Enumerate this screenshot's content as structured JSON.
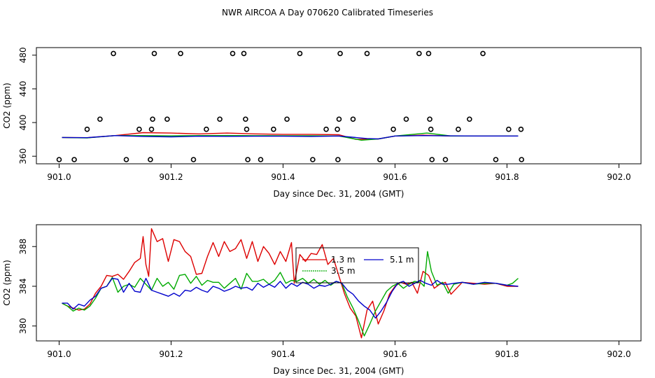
{
  "title": "NWR AIRCOA A  Day 070620  Calibrated Timeseries",
  "colors": {
    "background": "#ffffff",
    "axis": "#000000",
    "series_1_3m": "#dd0000",
    "series_3_5m": "#00aa00",
    "series_5_1m": "#0000cc",
    "calibration_points": "#000000"
  },
  "chart_data": [
    {
      "type": "line",
      "name": "top-panel",
      "xlabel": "Day since Dec. 31, 2004 (GMT)",
      "ylabel": "CO2 (ppm)",
      "xlim": [
        901.0,
        902.0
      ],
      "ylim": [
        356,
        484
      ],
      "x_ticks": [
        901.0,
        901.2,
        901.4,
        901.6,
        901.8,
        902.0
      ],
      "x_tick_labels": [
        "901.0",
        "901.2",
        "901.4",
        "901.6",
        "901.8",
        "902.0"
      ],
      "y_ticks": [
        360,
        400,
        440,
        480
      ],
      "y_tick_labels": [
        "360",
        "400",
        "440",
        "480"
      ],
      "calibration_points": {
        "name": "calibration standards",
        "points": [
          [
            901.0,
            356
          ],
          [
            901.027,
            356
          ],
          [
            901.05,
            392
          ],
          [
            901.073,
            404
          ],
          [
            901.097,
            482
          ],
          [
            901.12,
            356
          ],
          [
            901.143,
            392
          ],
          [
            901.163,
            356
          ],
          [
            901.165,
            392
          ],
          [
            901.167,
            404
          ],
          [
            901.17,
            482
          ],
          [
            901.193,
            404
          ],
          [
            901.217,
            482
          ],
          [
            901.24,
            356
          ],
          [
            901.263,
            392
          ],
          [
            901.287,
            404
          ],
          [
            901.31,
            482
          ],
          [
            901.33,
            482
          ],
          [
            901.333,
            404
          ],
          [
            901.335,
            392
          ],
          [
            901.337,
            356
          ],
          [
            901.36,
            356
          ],
          [
            901.383,
            392
          ],
          [
            901.407,
            404
          ],
          [
            901.43,
            482
          ],
          [
            901.453,
            356
          ],
          [
            901.477,
            392
          ],
          [
            901.497,
            392
          ],
          [
            901.498,
            356
          ],
          [
            901.5,
            404
          ],
          [
            901.502,
            482
          ],
          [
            901.525,
            404
          ],
          [
            901.55,
            482
          ],
          [
            901.573,
            356
          ],
          [
            901.597,
            392
          ],
          [
            901.62,
            404
          ],
          [
            901.643,
            482
          ],
          [
            901.66,
            482
          ],
          [
            901.662,
            404
          ],
          [
            901.664,
            392
          ],
          [
            901.666,
            356
          ],
          [
            901.69,
            356
          ],
          [
            901.713,
            392
          ],
          [
            901.733,
            404
          ],
          [
            901.757,
            482
          ],
          [
            901.78,
            356
          ],
          [
            901.803,
            392
          ],
          [
            901.825,
            392
          ],
          [
            901.826,
            356
          ]
        ]
      },
      "series": [
        {
          "name": "1.3 m",
          "color": "#dd0000",
          "x": [
            901.005,
            901.05,
            901.1,
            901.15,
            901.2,
            901.25,
            901.3,
            901.35,
            901.4,
            901.45,
            901.5,
            901.53,
            901.57,
            901.6,
            901.65,
            901.7,
            901.75,
            901.8,
            901.82
          ],
          "y": [
            382.3,
            382.0,
            384.5,
            388.0,
            387.5,
            386.5,
            387.5,
            386.5,
            386.0,
            386.0,
            385.5,
            380.0,
            380.5,
            384.0,
            385.0,
            384.0,
            384.0,
            384.0,
            384.0
          ]
        },
        {
          "name": "3.5 m",
          "color": "#00aa00",
          "x": [
            901.005,
            901.05,
            901.1,
            901.15,
            901.2,
            901.25,
            901.3,
            901.35,
            901.4,
            901.45,
            901.5,
            901.54,
            901.57,
            901.6,
            901.657,
            901.7,
            901.75,
            901.8,
            901.82
          ],
          "y": [
            382.3,
            381.8,
            384.5,
            384.5,
            384.2,
            384.5,
            384.6,
            384.4,
            384.3,
            384.3,
            384.0,
            379.0,
            380.5,
            384.0,
            387.5,
            384.0,
            384.0,
            384.0,
            384.0
          ]
        },
        {
          "name": "5.1 m",
          "color": "#0000cc",
          "x": [
            901.005,
            901.05,
            901.1,
            901.15,
            901.2,
            901.25,
            901.3,
            901.35,
            901.4,
            901.45,
            901.5,
            901.55,
            901.57,
            901.6,
            901.65,
            901.7,
            901.75,
            901.8,
            901.82
          ],
          "y": [
            382.3,
            382.0,
            384.5,
            383.5,
            383.0,
            383.8,
            383.6,
            383.8,
            383.8,
            383.5,
            384.0,
            381.0,
            380.6,
            384.0,
            384.5,
            384.2,
            384.0,
            384.0,
            384.0
          ]
        }
      ]
    },
    {
      "type": "line",
      "name": "bottom-panel",
      "xlabel": "Day since Dec. 31, 2004 (GMT)",
      "ylabel": "CO2 (ppm)",
      "xlim": [
        901.0,
        902.0
      ],
      "ylim": [
        378.5,
        390.2
      ],
      "x_ticks": [
        901.0,
        901.2,
        901.4,
        901.6,
        901.8,
        902.0
      ],
      "x_tick_labels": [
        "901.0",
        "901.2",
        "901.4",
        "901.6",
        "901.8",
        "902.0"
      ],
      "y_ticks": [
        380,
        384,
        388
      ],
      "y_tick_labels": [
        "380",
        "384",
        "388"
      ],
      "legend": {
        "position": "center-right",
        "entries": [
          "1.3 m",
          "3.5 m",
          "5.1 m"
        ]
      },
      "series": [
        {
          "name": "1.3 m",
          "color": "#dd0000",
          "x": [
            901.005,
            901.015,
            901.025,
            901.035,
            901.045,
            901.055,
            901.065,
            901.075,
            901.085,
            901.095,
            901.105,
            901.115,
            901.125,
            901.135,
            901.145,
            901.15,
            901.155,
            901.16,
            901.165,
            901.175,
            901.185,
            901.195,
            901.205,
            901.215,
            901.225,
            901.235,
            901.245,
            901.255,
            901.265,
            901.275,
            901.285,
            901.295,
            901.305,
            901.315,
            901.325,
            901.335,
            901.345,
            901.355,
            901.365,
            901.375,
            901.385,
            901.395,
            901.405,
            901.415,
            901.42,
            901.43,
            901.44,
            901.45,
            901.46,
            901.47,
            901.48,
            901.49,
            901.5,
            901.51,
            901.52,
            901.53,
            901.54,
            901.55,
            901.56,
            901.57,
            901.58,
            901.59,
            901.6,
            901.61,
            901.62,
            901.63,
            901.64,
            901.65,
            901.66,
            901.67,
            901.68,
            901.69,
            901.7,
            901.72,
            901.74,
            901.76,
            901.78,
            901.8,
            901.82
          ],
          "y": [
            382.3,
            382.0,
            381.8,
            381.6,
            381.7,
            382.2,
            383.3,
            384.0,
            385.1,
            385.0,
            385.2,
            384.7,
            385.5,
            386.4,
            386.8,
            389.0,
            386.2,
            385.0,
            389.8,
            388.5,
            388.8,
            386.5,
            388.7,
            388.5,
            387.5,
            387.0,
            385.2,
            385.3,
            387.0,
            388.4,
            387.0,
            388.5,
            387.5,
            387.8,
            388.7,
            386.8,
            388.5,
            386.5,
            388.0,
            387.3,
            386.2,
            387.5,
            386.5,
            388.4,
            384.3,
            387.2,
            386.5,
            387.3,
            387.2,
            388.2,
            386.2,
            386.8,
            385.0,
            383.2,
            381.8,
            381.0,
            378.8,
            381.6,
            382.5,
            380.2,
            381.5,
            383.2,
            384.0,
            384.4,
            384.2,
            384.4,
            383.3,
            385.5,
            385.1,
            383.8,
            384.2,
            384.4,
            383.2,
            384.4,
            384.3,
            384.2,
            384.3,
            384.0,
            384.0
          ]
        },
        {
          "name": "3.5 m",
          "color": "#00aa00",
          "x": [
            901.005,
            901.015,
            901.025,
            901.035,
            901.045,
            901.055,
            901.065,
            901.075,
            901.085,
            901.095,
            901.105,
            901.115,
            901.125,
            901.135,
            901.145,
            901.155,
            901.165,
            901.175,
            901.185,
            901.195,
            901.205,
            901.215,
            901.225,
            901.235,
            901.245,
            901.255,
            901.265,
            901.275,
            901.285,
            901.295,
            901.305,
            901.315,
            901.325,
            901.335,
            901.345,
            901.355,
            901.365,
            901.375,
            901.385,
            901.395,
            901.405,
            901.415,
            901.425,
            901.435,
            901.445,
            901.455,
            901.465,
            901.475,
            901.485,
            901.495,
            901.505,
            901.515,
            901.525,
            901.535,
            901.545,
            901.555,
            901.565,
            901.575,
            901.585,
            901.595,
            901.605,
            901.615,
            901.625,
            901.635,
            901.645,
            901.652,
            901.658,
            901.665,
            901.675,
            901.685,
            901.695,
            901.705,
            901.72,
            901.74,
            901.76,
            901.78,
            901.8,
            901.81,
            901.82
          ],
          "y": [
            382.3,
            382.0,
            381.5,
            381.8,
            381.6,
            382.0,
            382.8,
            383.8,
            384.0,
            384.9,
            383.4,
            384.0,
            384.2,
            383.9,
            384.8,
            384.2,
            383.6,
            384.8,
            384.0,
            384.4,
            383.7,
            385.1,
            385.2,
            384.3,
            385.0,
            384.1,
            384.6,
            384.4,
            384.4,
            383.8,
            384.3,
            384.8,
            383.7,
            385.3,
            384.5,
            384.5,
            384.7,
            384.2,
            384.6,
            385.4,
            384.3,
            384.6,
            384.5,
            384.8,
            384.3,
            384.7,
            384.2,
            384.6,
            384.1,
            384.5,
            384.3,
            382.9,
            381.8,
            380.5,
            379.0,
            380.2,
            381.5,
            382.5,
            383.5,
            384.0,
            384.3,
            383.8,
            384.2,
            384.5,
            384.4,
            384.0,
            387.5,
            385.5,
            384.1,
            384.4,
            383.3,
            384.2,
            384.4,
            384.2,
            384.3,
            384.3,
            384.1,
            384.3,
            384.8
          ]
        },
        {
          "name": "5.1 m",
          "color": "#0000cc",
          "x": [
            901.005,
            901.015,
            901.025,
            901.035,
            901.045,
            901.055,
            901.065,
            901.075,
            901.085,
            901.095,
            901.105,
            901.115,
            901.125,
            901.135,
            901.145,
            901.155,
            901.165,
            901.175,
            901.185,
            901.195,
            901.205,
            901.215,
            901.225,
            901.235,
            901.245,
            901.255,
            901.265,
            901.275,
            901.285,
            901.295,
            901.305,
            901.315,
            901.325,
            901.335,
            901.345,
            901.355,
            901.365,
            901.375,
            901.385,
            901.395,
            901.405,
            901.415,
            901.425,
            901.435,
            901.445,
            901.455,
            901.465,
            901.475,
            901.485,
            901.495,
            901.505,
            901.515,
            901.525,
            901.535,
            901.545,
            901.555,
            901.565,
            901.575,
            901.585,
            901.595,
            901.605,
            901.615,
            901.625,
            901.635,
            901.645,
            901.655,
            901.665,
            901.675,
            901.685,
            901.695,
            901.705,
            901.72,
            901.74,
            901.76,
            901.78,
            901.8,
            901.82
          ],
          "y": [
            382.3,
            382.3,
            381.7,
            382.2,
            382.0,
            382.6,
            383.0,
            383.8,
            384.0,
            384.8,
            384.7,
            383.4,
            384.3,
            383.5,
            383.4,
            384.8,
            383.6,
            383.4,
            383.2,
            383.0,
            383.3,
            383.0,
            383.6,
            383.5,
            383.9,
            383.6,
            383.4,
            384.0,
            383.8,
            383.5,
            383.7,
            384.0,
            383.8,
            383.9,
            383.6,
            384.3,
            383.9,
            384.2,
            383.9,
            384.5,
            383.8,
            384.3,
            384.0,
            384.4,
            384.2,
            383.8,
            384.1,
            384.0,
            384.2,
            384.5,
            384.3,
            383.6,
            383.2,
            382.5,
            382.0,
            381.6,
            380.8,
            381.5,
            382.4,
            383.5,
            384.3,
            384.5,
            384.0,
            384.3,
            384.6,
            384.3,
            384.1,
            384.6,
            384.2,
            384.2,
            384.3,
            384.4,
            384.2,
            384.4,
            384.3,
            384.1,
            384.0
          ]
        }
      ]
    }
  ]
}
